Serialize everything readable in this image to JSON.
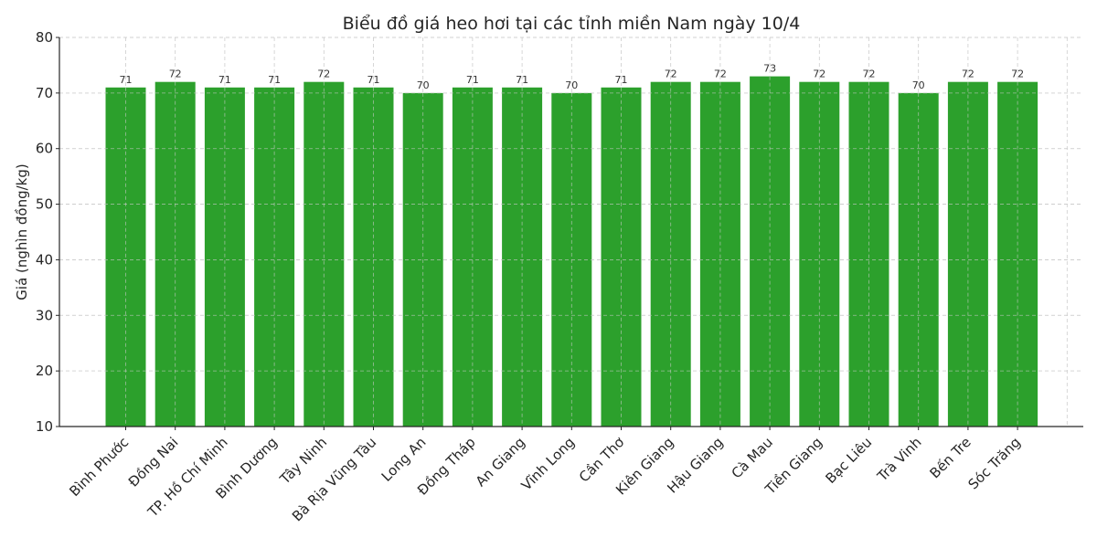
{
  "chart_data": {
    "type": "bar",
    "title": "Biểu đồ giá heo hơi tại các tỉnh miền Nam ngày 10/4",
    "xlabel": "",
    "ylabel": "Giá (nghìn đồng/kg)",
    "ylim": [
      10,
      80
    ],
    "yticks": [
      10,
      20,
      30,
      40,
      50,
      60,
      70,
      80
    ],
    "grid": true,
    "bar_color": "#2ca02c",
    "categories": [
      "Bình Phước",
      "Đồng Nai",
      "TP. Hồ Chí Minh",
      "Bình Dương",
      "Tây Ninh",
      "Bà Rịa  Vũng Tàu",
      "Long An",
      "Đồng Tháp",
      "An Giang",
      "Vĩnh Long",
      "Cần Thơ",
      "Kiên Giang",
      "Hậu Giang",
      "Cà Mau",
      "Tiền Giang",
      "Bạc Liêu",
      "Trà Vinh",
      "Bến Tre",
      "Sóc Trăng"
    ],
    "values": [
      71,
      72,
      71,
      71,
      72,
      71,
      70,
      71,
      71,
      70,
      71,
      72,
      72,
      73,
      72,
      72,
      70,
      72,
      72
    ]
  }
}
